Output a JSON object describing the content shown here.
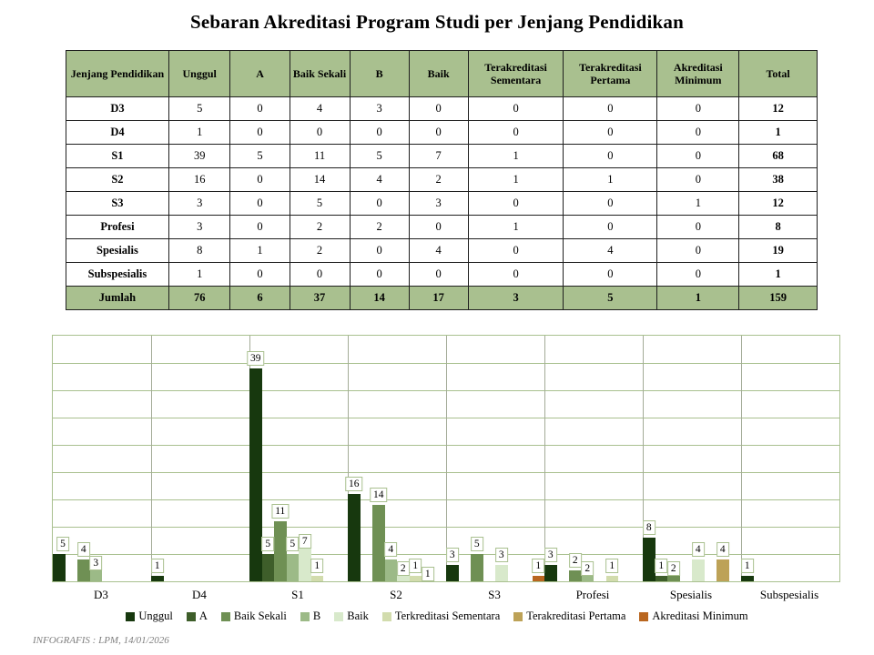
{
  "title": "Sebaran Akreditasi Program Studi per Jenjang Pendidikan",
  "footer": "INFOGRAFIS : LPM, 14/01/2026",
  "colors": {
    "table_header_bg": "#a9c08f",
    "table_border": "#1f1f1f",
    "gridline_h": "#a9c08f",
    "gridline_v": "#a3ab97",
    "plot_border": "#a9c08f",
    "label_box_border": "#a9c08f"
  },
  "table": {
    "headers": [
      "Jenjang Pendidikan",
      "Unggul",
      "A",
      "Baik Sekali",
      "B",
      "Baik",
      "Terakreditasi Sementara",
      "Terakreditasi Pertama",
      "Akreditasi Minimum",
      "Total"
    ],
    "col_widths": [
      "13.7%",
      "8.2%",
      "7.9%",
      "8.0%",
      "7.9%",
      "7.9%",
      "12.7%",
      "12.5%",
      "10.9%",
      "10.4%"
    ],
    "rows": [
      {
        "label": "D3",
        "values": [
          5,
          0,
          4,
          3,
          0,
          0,
          0,
          0
        ],
        "total": 12
      },
      {
        "label": "D4",
        "values": [
          1,
          0,
          0,
          0,
          0,
          0,
          0,
          0
        ],
        "total": 1
      },
      {
        "label": "S1",
        "values": [
          39,
          5,
          11,
          5,
          7,
          1,
          0,
          0
        ],
        "total": 68
      },
      {
        "label": "S2",
        "values": [
          16,
          0,
          14,
          4,
          2,
          1,
          1,
          0
        ],
        "total": 38
      },
      {
        "label": "S3",
        "values": [
          3,
          0,
          5,
          0,
          3,
          0,
          0,
          1
        ],
        "total": 12
      },
      {
        "label": "Profesi",
        "values": [
          3,
          0,
          2,
          2,
          0,
          1,
          0,
          0
        ],
        "total": 8
      },
      {
        "label": "Spesialis",
        "values": [
          8,
          1,
          2,
          0,
          4,
          0,
          4,
          0
        ],
        "total": 19
      },
      {
        "label": "Subspesialis",
        "values": [
          1,
          0,
          0,
          0,
          0,
          0,
          0,
          0
        ],
        "total": 1
      }
    ],
    "footer_row": {
      "label": "Jumlah",
      "values": [
        76,
        6,
        37,
        14,
        17,
        3,
        5,
        1
      ],
      "total": 159
    }
  },
  "chart_data": {
    "type": "bar",
    "title": "",
    "xlabel": "",
    "ylabel": "",
    "categories": [
      "D3",
      "D4",
      "S1",
      "S2",
      "S3",
      "Profesi",
      "Spesialis",
      "Subspesialis"
    ],
    "series": [
      {
        "name": "Unggul",
        "color": "#17380e",
        "values": [
          5,
          1,
          39,
          16,
          3,
          3,
          8,
          1
        ]
      },
      {
        "name": "A",
        "color": "#3e5e2a",
        "values": [
          0,
          0,
          5,
          0,
          0,
          0,
          1,
          0
        ]
      },
      {
        "name": "Baik Sekali",
        "color": "#6f9054",
        "values": [
          4,
          0,
          11,
          14,
          5,
          2,
          2,
          0
        ]
      },
      {
        "name": "B",
        "color": "#9cba87",
        "values": [
          3,
          0,
          5,
          4,
          0,
          2,
          0,
          0
        ]
      },
      {
        "name": "Baik",
        "color": "#d8e9cb",
        "values": [
          0,
          0,
          7,
          2,
          3,
          0,
          4,
          0
        ]
      },
      {
        "name": "Terkreditasi Sementara",
        "color": "#d2dcad",
        "values": [
          0,
          0,
          1,
          1,
          0,
          1,
          0,
          0
        ]
      },
      {
        "name": "Terakreditasi Pertama",
        "color": "#bda257",
        "values": [
          0,
          0,
          0,
          1,
          0,
          0,
          4,
          0
        ]
      },
      {
        "name": "Akreditasi Minimum",
        "color": "#b9661f",
        "values": [
          0,
          0,
          0,
          0,
          1,
          0,
          0,
          0
        ]
      }
    ],
    "ylim": [
      0,
      45
    ],
    "gridline_step": 5,
    "grid": true,
    "y_axis_labels_visible": false,
    "data_labels": "nonzero values shown in boxed labels above bars",
    "legend_position": "bottom"
  }
}
